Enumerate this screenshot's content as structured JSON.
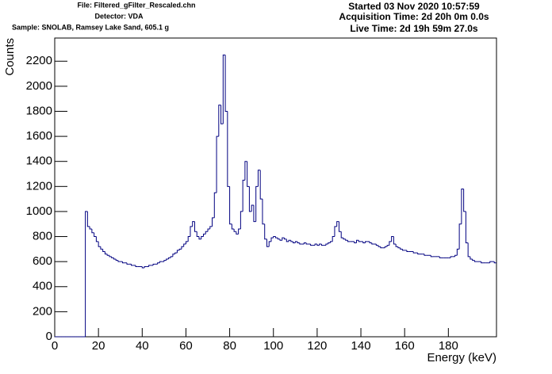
{
  "chart_data": {
    "type": "histogram",
    "annotations": [
      "File: Filtered_gFilter_Rescaled.chn",
      "Detector: VDA",
      "Sample: SNOLAB, Ramsey Lake Sand, 605.1 g",
      "Started 03 Nov 2020 10:57:59",
      "Acquisition Time: 2d 20h 0m 0.0s",
      "Live Time: 2d 19h 59m 27.0s"
    ],
    "x_label": "Energy (keV)",
    "y_label": "Counts",
    "color": "#000080",
    "xlim": [
      0,
      202
    ],
    "ylim": [
      0,
      2385
    ],
    "xticks": [
      0,
      20,
      40,
      60,
      80,
      100,
      120,
      140,
      160,
      180
    ],
    "yticks": [
      0,
      200,
      400,
      600,
      800,
      1000,
      1200,
      1400,
      1600,
      1800,
      2000,
      2200
    ],
    "bins": [
      0,
      1,
      2,
      3,
      4,
      5,
      6,
      7,
      8,
      9,
      10,
      11,
      12,
      13,
      14,
      15,
      16,
      17,
      18,
      19,
      20,
      21,
      22,
      23,
      24,
      25,
      26,
      27,
      28,
      29,
      30,
      31,
      32,
      33,
      34,
      35,
      36,
      37,
      38,
      39,
      40,
      41,
      42,
      43,
      44,
      45,
      46,
      47,
      48,
      49,
      50,
      51,
      52,
      53,
      54,
      55,
      56,
      57,
      58,
      59,
      60,
      61,
      62,
      63,
      64,
      65,
      66,
      67,
      68,
      69,
      70,
      71,
      72,
      73,
      74,
      75,
      76,
      77,
      78,
      79,
      80,
      81,
      82,
      83,
      84,
      85,
      86,
      87,
      88,
      89,
      90,
      91,
      92,
      93,
      94,
      95,
      96,
      97,
      98,
      99,
      100,
      101,
      102,
      103,
      104,
      105,
      106,
      107,
      108,
      109,
      110,
      111,
      112,
      113,
      114,
      115,
      116,
      117,
      118,
      119,
      120,
      121,
      122,
      123,
      124,
      125,
      126,
      127,
      128,
      129,
      130,
      131,
      132,
      133,
      134,
      135,
      136,
      137,
      138,
      139,
      140,
      141,
      142,
      143,
      144,
      145,
      146,
      147,
      148,
      149,
      150,
      151,
      152,
      153,
      154,
      155,
      156,
      157,
      158,
      159,
      160,
      161,
      162,
      163,
      164,
      165,
      166,
      167,
      168,
      169,
      170,
      171,
      172,
      173,
      174,
      175,
      176,
      177,
      178,
      179,
      180,
      181,
      182,
      183,
      184,
      185,
      186,
      187,
      188,
      189,
      190,
      191,
      192,
      193,
      194,
      195,
      196,
      197,
      198,
      199,
      200,
      201,
      202
    ],
    "values": [
      0,
      0,
      0,
      0,
      0,
      0,
      0,
      0,
      0,
      0,
      0,
      0,
      0,
      0,
      1000,
      880,
      860,
      830,
      800,
      760,
      720,
      700,
      680,
      660,
      650,
      640,
      630,
      620,
      610,
      600,
      600,
      590,
      590,
      580,
      580,
      570,
      570,
      560,
      560,
      560,
      550,
      560,
      560,
      570,
      570,
      580,
      580,
      590,
      600,
      600,
      610,
      620,
      630,
      640,
      660,
      670,
      690,
      700,
      720,
      740,
      760,
      800,
      880,
      920,
      840,
      800,
      780,
      800,
      820,
      840,
      860,
      880,
      950,
      1150,
      1600,
      1850,
      1700,
      2250,
      1800,
      1200,
      900,
      860,
      840,
      820,
      860,
      1000,
      1250,
      1400,
      1200,
      1000,
      1050,
      920,
      1200,
      1330,
      1100,
      900,
      780,
      720,
      760,
      790,
      800,
      790,
      780,
      770,
      790,
      780,
      760,
      770,
      760,
      750,
      760,
      750,
      740,
      740,
      750,
      740,
      740,
      730,
      730,
      740,
      730,
      740,
      730,
      730,
      740,
      750,
      760,
      800,
      880,
      920,
      840,
      790,
      780,
      770,
      760,
      760,
      760,
      750,
      770,
      760,
      760,
      750,
      760,
      760,
      750,
      740,
      740,
      730,
      720,
      710,
      710,
      720,
      730,
      760,
      800,
      740,
      720,
      710,
      700,
      690,
      690,
      680,
      680,
      680,
      670,
      670,
      660,
      660,
      660,
      650,
      650,
      650,
      640,
      640,
      640,
      640,
      630,
      630,
      630,
      630,
      630,
      640,
      640,
      650,
      700,
      900,
      1180,
      1000,
      750,
      640,
      620,
      610,
      600,
      600,
      600,
      590,
      590,
      590,
      590,
      600,
      600,
      590
    ]
  }
}
